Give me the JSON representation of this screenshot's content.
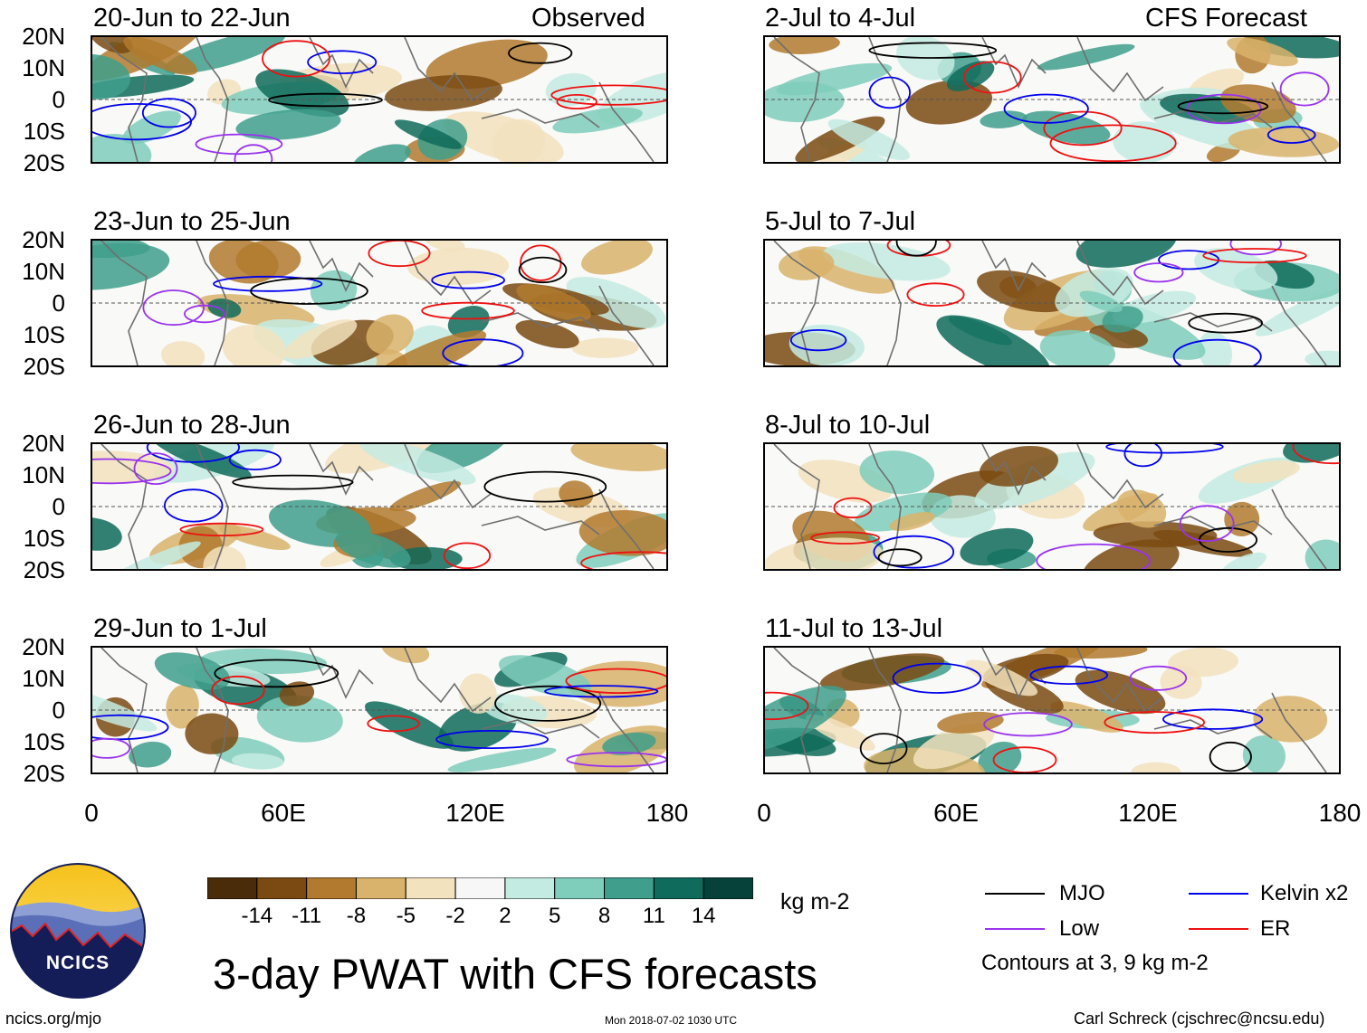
{
  "labels": {
    "observed": "Observed",
    "forecast": "CFS Forecast"
  },
  "panels": [
    {
      "title": "20-Jun to 22-Jun"
    },
    {
      "title": "23-Jun to 25-Jun"
    },
    {
      "title": "26-Jun to 28-Jun"
    },
    {
      "title": "29-Jun to 1-Jul"
    },
    {
      "title": "2-Jul to 4-Jul"
    },
    {
      "title": "5-Jul to 7-Jul"
    },
    {
      "title": "8-Jul to 10-Jul"
    },
    {
      "title": "11-Jul to 13-Jul"
    }
  ],
  "axes": {
    "y_ticks": [
      "20N",
      "10N",
      "0",
      "10S",
      "20S"
    ],
    "x_ticks": [
      "0",
      "60E",
      "120E",
      "180"
    ]
  },
  "colorbar": {
    "unit": "kg m-2",
    "ticks": [
      "-14",
      "-11",
      "-8",
      "-5",
      "-2",
      "2",
      "5",
      "8",
      "11",
      "14"
    ],
    "colors": [
      "#4a2c0a",
      "#7a4a12",
      "#b27a2e",
      "#d9b36b",
      "#f2e2bd",
      "#f7f7f7",
      "#c4ebe2",
      "#7fcdbb",
      "#3f9f8c",
      "#0f6b5b",
      "#07423a"
    ]
  },
  "legend": {
    "mjo": "MJO",
    "kelvin": "Kelvin x2",
    "low": "Low",
    "er": "ER",
    "contours": "Contours at 3, 9 kg m-2",
    "colors": {
      "mjo": "#000000",
      "kelvin": "#0000ee",
      "low": "#9933ee",
      "er": "#ee1111"
    }
  },
  "main_title": "3-day PWAT with CFS forecasts",
  "footer": {
    "url": "ncics.org/mjo",
    "timestamp": "Mon 2018-07-02 1030 UTC",
    "credit": "Carl Schreck (cjschrec@ncsu.edu)"
  },
  "logo": {
    "text": "NCICS"
  }
}
